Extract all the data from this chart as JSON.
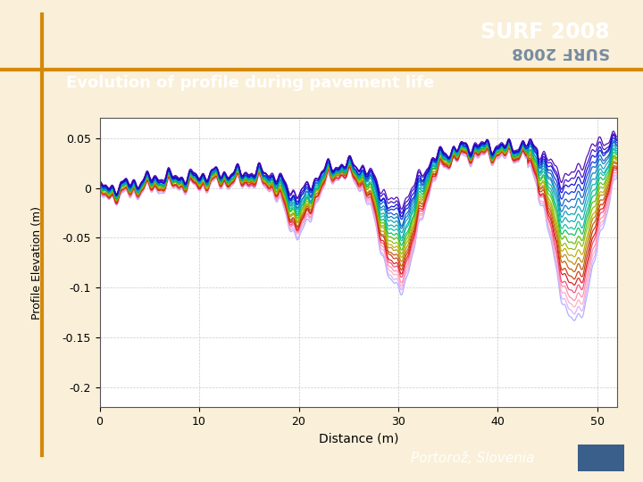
{
  "title": "Evolution of profile during pavement life",
  "xlabel": "Distance (m)",
  "ylabel": "Profile Elevation (m)",
  "xlim": [
    0,
    52
  ],
  "ylim": [
    -0.22,
    0.07
  ],
  "yticks": [
    0.05,
    0,
    -0.05,
    -0.1,
    -0.15,
    -0.2
  ],
  "xticks": [
    0,
    10,
    20,
    30,
    40,
    50
  ],
  "bg_color": "#faefd8",
  "header_color": "#2e4d72",
  "plot_bg": "#ffffff",
  "surf_text": "SURF 2008",
  "surf_reflect_color": "#4a6a90",
  "location_text": "Portorož, Slovenia",
  "orange_color": "#d4890a",
  "n_profiles": 22,
  "profile_colors": [
    "#4400aa",
    "#3300cc",
    "#0000cc",
    "#0022dd",
    "#0055cc",
    "#0077bb",
    "#0099bb",
    "#00aaaa",
    "#00bb99",
    "#00bb55",
    "#55bb00",
    "#88bb00",
    "#bbaa00",
    "#bb8800",
    "#bb5500",
    "#cc3300",
    "#dd1111",
    "#ee4477",
    "#ff88aa",
    "#ffaabb",
    "#ddaaff",
    "#aaaaff"
  ]
}
